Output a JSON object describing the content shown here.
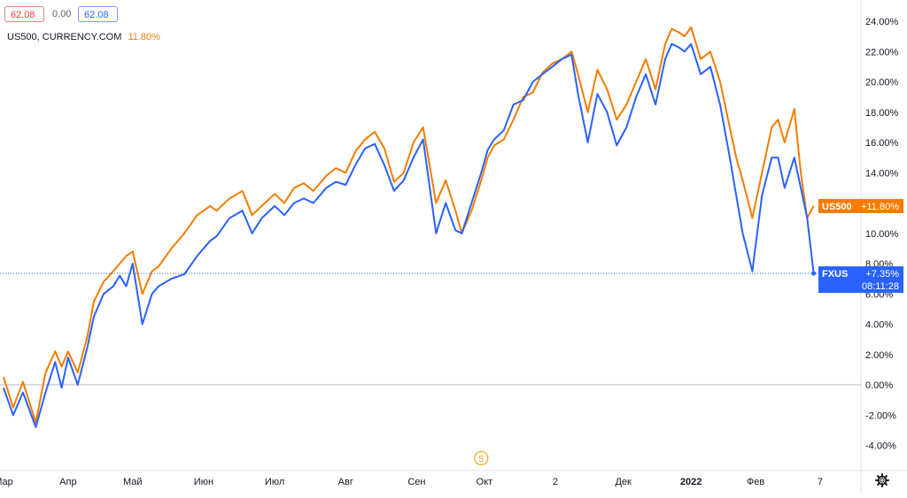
{
  "header": {
    "open_value": "62.08",
    "change_value": "0.00",
    "close_value": "62.08",
    "legend_symbol": "US500, CURRENCY.COM",
    "legend_value": "11.80%"
  },
  "colors": {
    "us500": "#f57c00",
    "fxus": "#2962ff",
    "grid": "#d1d4dc",
    "text": "#131722"
  },
  "time_badge": "5",
  "gear_icon": "gear-icon",
  "chart_data": {
    "type": "line",
    "y_axis": {
      "ticks": [
        24,
        22,
        20,
        18,
        16,
        14,
        12,
        10,
        8,
        6,
        4,
        2,
        0,
        -2,
        -4
      ],
      "tick_labels": [
        "24.00%",
        "22.00%",
        "20.00%",
        "18.00%",
        "16.00%",
        "14.00%",
        "12.00%",
        "10.00%",
        "8.00%",
        "6.00%",
        "4.00%",
        "2.00%",
        "0.00%",
        "-2.00%",
        "-4.00%"
      ],
      "range": [
        -5,
        25
      ],
      "unit": "%"
    },
    "x_axis": {
      "tick_labels": [
        "Мар",
        "Апр",
        "Май",
        "Июн",
        "Июл",
        "Авг",
        "Сен",
        "Окт",
        "2",
        "Дек",
        "2022",
        "Фев",
        "7"
      ],
      "tick_index": [
        0,
        20,
        40,
        62,
        84,
        106,
        128,
        149,
        171,
        192,
        213,
        233,
        253
      ],
      "bold_labels": [
        "2022"
      ]
    },
    "series": [
      {
        "name": "US500",
        "label_value": "+11.80%",
        "last_value": 11.8,
        "x": [
          0,
          3,
          6,
          10,
          13,
          16,
          18,
          20,
          23,
          26,
          28,
          31,
          34,
          36,
          38,
          40,
          43,
          46,
          48,
          52,
          56,
          60,
          64,
          66,
          70,
          74,
          77,
          80,
          84,
          87,
          90,
          93,
          96,
          100,
          103,
          106,
          109,
          112,
          115,
          118,
          121,
          124,
          127,
          130,
          134,
          137,
          140,
          142,
          145,
          148,
          150,
          152,
          155,
          158,
          161,
          164,
          167,
          170,
          173,
          176,
          178,
          181,
          184,
          187,
          190,
          193,
          196,
          199,
          202,
          205,
          207,
          209,
          211,
          213,
          216,
          219,
          222,
          225,
          227,
          229,
          232,
          235,
          238,
          240,
          242,
          245,
          247,
          249,
          251
        ],
        "values": [
          0.5,
          -1.5,
          0.2,
          -2.5,
          0.8,
          2.2,
          1.2,
          2.2,
          0.8,
          3.2,
          5.5,
          6.8,
          7.5,
          8.0,
          8.5,
          8.8,
          6.0,
          7.5,
          7.8,
          9.0,
          10.0,
          11.2,
          11.8,
          11.5,
          12.3,
          12.8,
          11.2,
          11.8,
          12.6,
          12.0,
          13.0,
          13.3,
          12.8,
          13.8,
          14.3,
          14.0,
          15.4,
          16.2,
          16.7,
          15.6,
          13.4,
          14.0,
          16.0,
          17.0,
          12.0,
          13.5,
          11.5,
          10.0,
          11.5,
          13.5,
          15.0,
          15.8,
          16.2,
          17.5,
          19.0,
          19.3,
          20.6,
          21.2,
          21.5,
          22.0,
          20.5,
          18.0,
          20.8,
          19.5,
          17.5,
          18.5,
          20.0,
          21.5,
          19.5,
          22.5,
          23.5,
          23.3,
          23.0,
          23.6,
          21.5,
          22.0,
          20.0,
          17.0,
          15.0,
          13.5,
          11.0,
          14.0,
          17.0,
          17.5,
          16.0,
          18.2,
          14.0,
          11.0,
          11.8
        ]
      },
      {
        "name": "FXUS",
        "label_value": "+7.35%",
        "label_time": "08:11:28",
        "last_value": 7.35,
        "x": [
          0,
          3,
          6,
          10,
          13,
          16,
          18,
          20,
          23,
          26,
          28,
          31,
          34,
          36,
          38,
          40,
          43,
          46,
          48,
          52,
          56,
          60,
          64,
          66,
          70,
          74,
          77,
          80,
          84,
          87,
          90,
          93,
          96,
          100,
          103,
          106,
          109,
          112,
          115,
          118,
          121,
          124,
          127,
          130,
          134,
          137,
          140,
          142,
          145,
          148,
          150,
          152,
          155,
          158,
          161,
          164,
          167,
          170,
          173,
          176,
          178,
          181,
          184,
          187,
          190,
          193,
          196,
          199,
          202,
          205,
          207,
          209,
          211,
          213,
          216,
          219,
          222,
          225,
          227,
          229,
          232,
          235,
          238,
          240,
          242,
          245,
          247,
          249,
          251
        ],
        "values": [
          -0.2,
          -2.0,
          -0.5,
          -2.8,
          -0.5,
          1.5,
          -0.2,
          1.8,
          0.0,
          2.5,
          4.5,
          6.0,
          6.5,
          7.2,
          6.5,
          8.0,
          4.0,
          6.0,
          6.5,
          7.0,
          7.3,
          8.5,
          9.5,
          9.8,
          11.0,
          11.5,
          10.0,
          11.0,
          11.8,
          11.2,
          12.0,
          12.3,
          12.0,
          13.0,
          13.4,
          13.2,
          14.5,
          15.6,
          15.9,
          14.5,
          12.8,
          13.5,
          15.0,
          16.2,
          10.0,
          12.0,
          10.2,
          10.0,
          12.0,
          14.0,
          15.5,
          16.2,
          16.8,
          18.5,
          18.8,
          20.0,
          20.5,
          21.0,
          21.5,
          21.8,
          19.2,
          16.0,
          19.2,
          18.0,
          15.8,
          17.0,
          19.0,
          20.5,
          18.5,
          21.5,
          22.5,
          22.3,
          22.0,
          22.5,
          20.5,
          21.0,
          18.5,
          15.0,
          12.5,
          10.0,
          7.5,
          12.5,
          15.0,
          15.0,
          13.0,
          15.0,
          13.0,
          11.0,
          7.35
        ]
      }
    ],
    "grid": true,
    "legend": "top-left"
  }
}
